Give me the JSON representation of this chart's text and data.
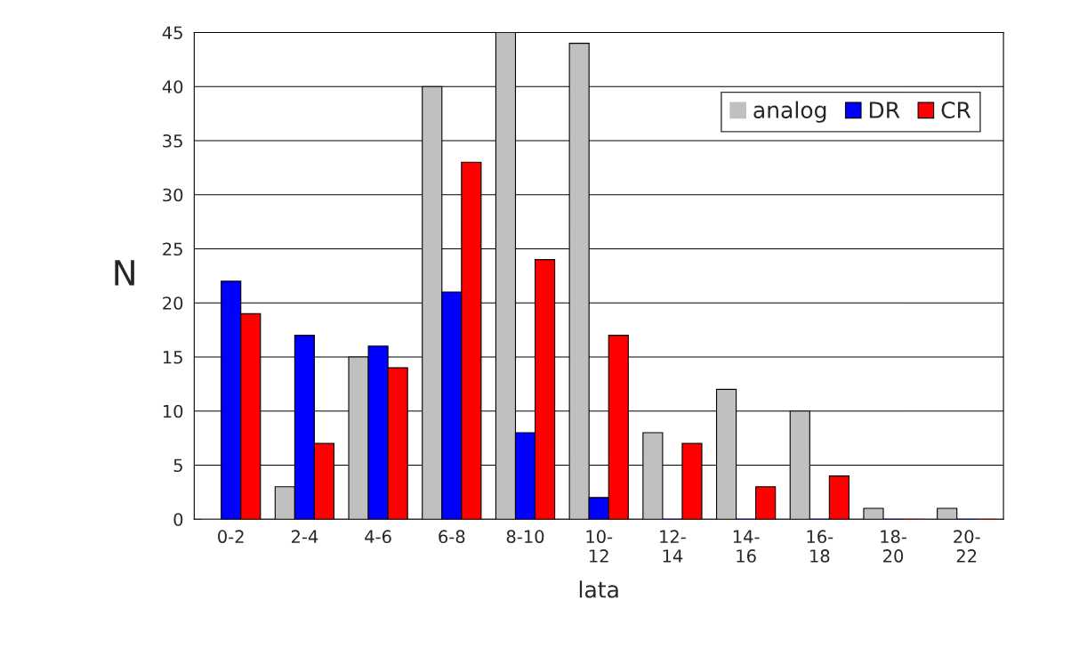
{
  "chart_data": {
    "type": "bar",
    "xlabel": "lata",
    "ylabel": "N",
    "categories": [
      "0-2",
      "2-4",
      "4-6",
      "6-8",
      "8-10",
      "10-12",
      "12-14",
      "14-16",
      "16-18",
      "18-20",
      "20-22"
    ],
    "series": [
      {
        "name": "analog",
        "color": "#c0c0c0",
        "values": [
          0,
          3,
          15,
          40,
          45,
          44,
          8,
          12,
          10,
          1,
          1
        ]
      },
      {
        "name": "DR",
        "color": "#0000ff",
        "values": [
          22,
          17,
          16,
          21,
          8,
          2,
          0,
          0,
          0,
          0,
          0
        ]
      },
      {
        "name": "CR",
        "color": "#ff0000",
        "values": [
          19,
          7,
          14,
          33,
          24,
          17,
          7,
          3,
          4,
          0,
          0
        ]
      }
    ],
    "ylim": [
      0,
      45
    ],
    "yticks": [
      0,
      5,
      10,
      15,
      20,
      25,
      30,
      35,
      40,
      45
    ],
    "grid": "y",
    "legend": "top right"
  }
}
